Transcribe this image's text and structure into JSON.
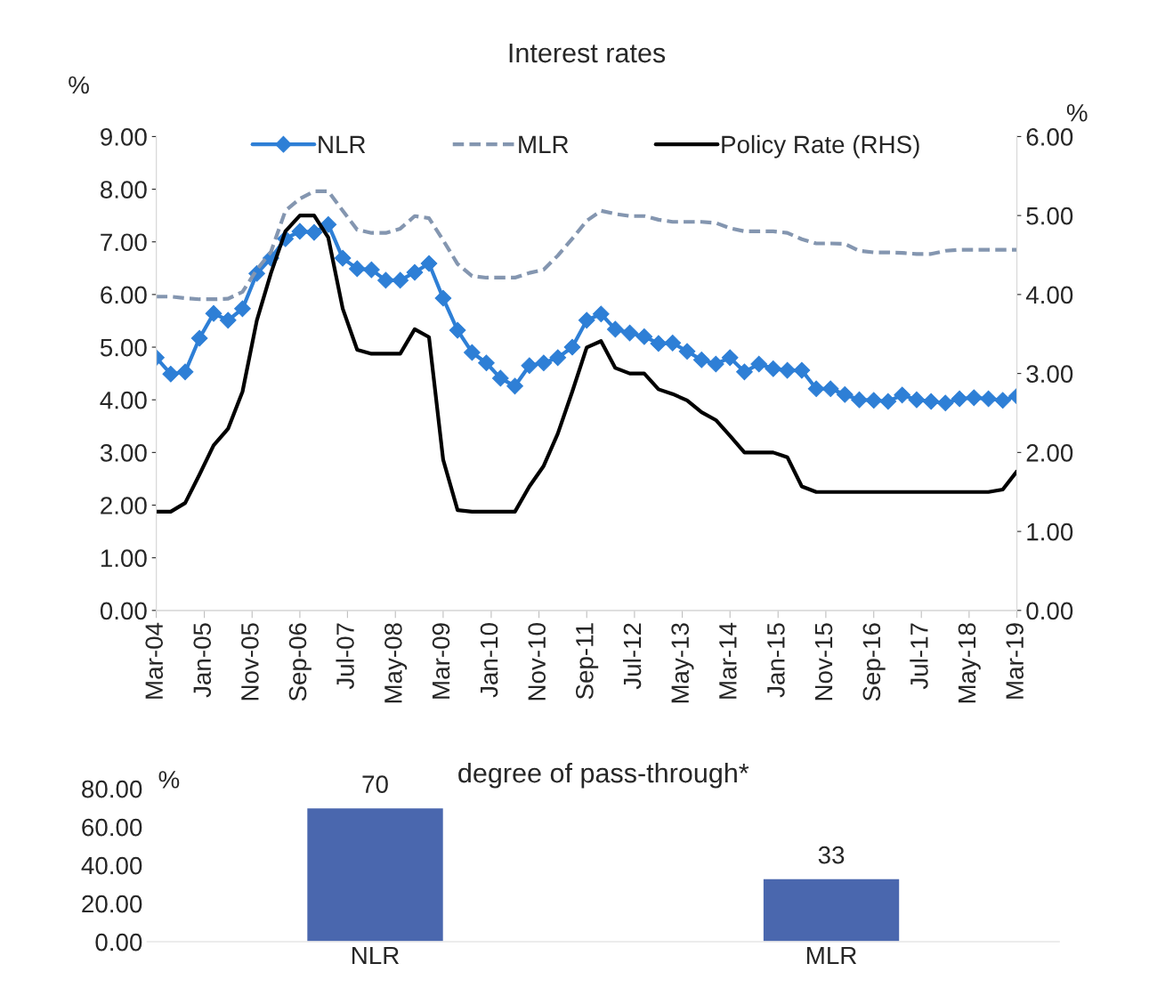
{
  "chart_data": [
    {
      "type": "line",
      "title": "Interest rates",
      "ylabel": "%",
      "y2label": "%",
      "x": [
        "2004-03",
        "2004-06",
        "2004-09",
        "2004-12",
        "2005-03",
        "2005-06",
        "2005-09",
        "2005-12",
        "2006-03",
        "2006-06",
        "2006-09",
        "2006-12",
        "2007-03",
        "2007-06",
        "2007-09",
        "2007-12",
        "2008-03",
        "2008-06",
        "2008-09",
        "2008-12",
        "2009-03",
        "2009-06",
        "2009-09",
        "2009-12",
        "2010-03",
        "2010-06",
        "2010-09",
        "2010-12",
        "2011-03",
        "2011-06",
        "2011-09",
        "2011-12",
        "2012-03",
        "2012-06",
        "2012-09",
        "2012-12",
        "2013-03",
        "2013-06",
        "2013-09",
        "2013-12",
        "2014-03",
        "2014-06",
        "2014-09",
        "2014-12",
        "2015-03",
        "2015-06",
        "2015-09",
        "2015-12",
        "2016-03",
        "2016-06",
        "2016-09",
        "2016-12",
        "2017-03",
        "2017-06",
        "2017-09",
        "2017-12",
        "2018-03",
        "2018-06",
        "2018-09",
        "2018-12",
        "2019-03"
      ],
      "series": [
        {
          "name": "NLR",
          "color": "#2e7fd6",
          "marker": "diamond",
          "line_style": "solid",
          "values": [
            4.8,
            4.49,
            4.53,
            5.17,
            5.64,
            5.51,
            5.73,
            6.4,
            6.69,
            7.06,
            7.2,
            7.18,
            7.33,
            6.69,
            6.49,
            6.47,
            6.27,
            6.27,
            6.42,
            6.59,
            5.93,
            5.32,
            4.9,
            4.7,
            4.41,
            4.26,
            4.65,
            4.7,
            4.8,
            5.0,
            5.51,
            5.63,
            5.34,
            5.27,
            5.2,
            5.07,
            5.08,
            4.92,
            4.76,
            4.68,
            4.8,
            4.53,
            4.68,
            4.59,
            4.56,
            4.56,
            4.21,
            4.21,
            4.1,
            4.0,
            3.99,
            3.97,
            4.09,
            4.0,
            3.97,
            3.94,
            4.02,
            4.04,
            4.02,
            3.99,
            4.07
          ]
        },
        {
          "name": "MLR",
          "color": "#8496b0",
          "marker": "none",
          "line_style": "dashed",
          "values": [
            5.96,
            5.96,
            5.93,
            5.91,
            5.91,
            5.92,
            6.05,
            6.47,
            6.81,
            7.59,
            7.82,
            7.96,
            7.96,
            7.59,
            7.23,
            7.17,
            7.17,
            7.25,
            7.49,
            7.45,
            7.03,
            6.58,
            6.35,
            6.32,
            6.32,
            6.32,
            6.41,
            6.47,
            6.74,
            7.06,
            7.4,
            7.59,
            7.53,
            7.49,
            7.49,
            7.42,
            7.38,
            7.38,
            7.38,
            7.36,
            7.26,
            7.2,
            7.2,
            7.2,
            7.17,
            7.05,
            6.97,
            6.97,
            6.96,
            6.83,
            6.8,
            6.8,
            6.79,
            6.77,
            6.77,
            6.83,
            6.85,
            6.85,
            6.85,
            6.85,
            6.85
          ]
        },
        {
          "name": "Policy Rate (RHS)",
          "color": "#000000",
          "marker": "none",
          "line_style": "solid",
          "axis": "y2",
          "values": [
            1.25,
            1.25,
            1.36,
            1.72,
            2.09,
            2.3,
            2.77,
            3.67,
            4.27,
            4.8,
            5.0,
            5.0,
            4.72,
            3.82,
            3.3,
            3.25,
            3.25,
            3.25,
            3.56,
            3.46,
            1.91,
            1.27,
            1.25,
            1.25,
            1.25,
            1.25,
            1.57,
            1.83,
            2.24,
            2.77,
            3.33,
            3.41,
            3.07,
            3.0,
            3.0,
            2.8,
            2.74,
            2.66,
            2.51,
            2.41,
            2.21,
            2.0,
            2.0,
            2.0,
            1.94,
            1.57,
            1.5,
            1.5,
            1.5,
            1.5,
            1.5,
            1.5,
            1.5,
            1.5,
            1.5,
            1.5,
            1.5,
            1.5,
            1.5,
            1.53,
            1.76
          ]
        }
      ],
      "xlim": [
        "2004-03",
        "2019-03"
      ],
      "xticks": [
        {
          "value": "2004-03",
          "label": "Mar-04"
        },
        {
          "value": "2005-01",
          "label": "Jan-05"
        },
        {
          "value": "2005-11",
          "label": "Nov-05"
        },
        {
          "value": "2006-09",
          "label": "Sep-06"
        },
        {
          "value": "2007-07",
          "label": "Jul-07"
        },
        {
          "value": "2008-05",
          "label": "May-08"
        },
        {
          "value": "2009-03",
          "label": "Mar-09"
        },
        {
          "value": "2010-01",
          "label": "Jan-10"
        },
        {
          "value": "2010-11",
          "label": "Nov-10"
        },
        {
          "value": "2011-09",
          "label": "Sep-11"
        },
        {
          "value": "2012-07",
          "label": "Jul-12"
        },
        {
          "value": "2013-05",
          "label": "May-13"
        },
        {
          "value": "2014-03",
          "label": "Mar-14"
        },
        {
          "value": "2015-01",
          "label": "Jan-15"
        },
        {
          "value": "2015-11",
          "label": "Nov-15"
        },
        {
          "value": "2016-09",
          "label": "Sep-16"
        },
        {
          "value": "2017-07",
          "label": "Jul-17"
        },
        {
          "value": "2018-05",
          "label": "May-18"
        },
        {
          "value": "2019-03",
          "label": "Mar-19"
        }
      ],
      "ylim": [
        0,
        9
      ],
      "yticks": [
        {
          "value": 0,
          "label": "0.00"
        },
        {
          "value": 1,
          "label": "1.00"
        },
        {
          "value": 2,
          "label": "2.00"
        },
        {
          "value": 3,
          "label": "3.00"
        },
        {
          "value": 4,
          "label": "4.00"
        },
        {
          "value": 5,
          "label": "5.00"
        },
        {
          "value": 6,
          "label": "6.00"
        },
        {
          "value": 7,
          "label": "7.00"
        },
        {
          "value": 8,
          "label": "8.00"
        },
        {
          "value": 9,
          "label": "9.00"
        }
      ],
      "y2lim": [
        0,
        6
      ],
      "y2ticks": [
        {
          "value": 0,
          "label": "0.00"
        },
        {
          "value": 1,
          "label": "1.00"
        },
        {
          "value": 2,
          "label": "2.00"
        },
        {
          "value": 3,
          "label": "3.00"
        },
        {
          "value": 4,
          "label": "4.00"
        },
        {
          "value": 5,
          "label": "5.00"
        },
        {
          "value": 6,
          "label": "6.00"
        }
      ],
      "legend": "top",
      "grid": false
    },
    {
      "type": "bar",
      "title": "degree of pass-through*",
      "ylabel": "%",
      "categories": [
        "NLR",
        "MLR"
      ],
      "values": [
        70,
        33
      ],
      "color": "#4a67ae",
      "data_labels": true,
      "ylim": [
        0,
        80
      ],
      "yticks": [
        {
          "value": 0,
          "label": "0.00"
        },
        {
          "value": 20,
          "label": "20.00"
        },
        {
          "value": 40,
          "label": "40.00"
        },
        {
          "value": 60,
          "label": "60.00"
        },
        {
          "value": 80,
          "label": "80.00"
        }
      ],
      "grid": false
    }
  ]
}
